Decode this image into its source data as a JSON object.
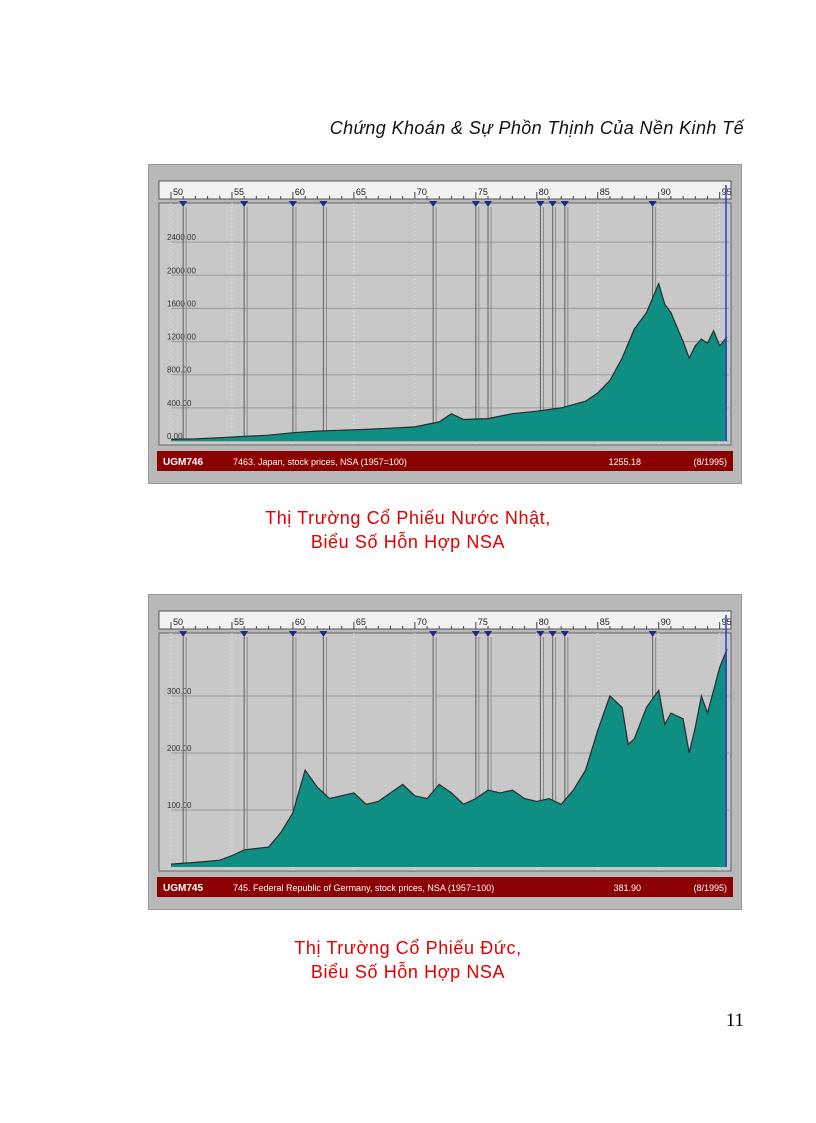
{
  "header": {
    "title": "Chứng Khoán & Sự Phồn Thịnh Của Nền Kinh Tế"
  },
  "page_number": "11",
  "captions": {
    "japan": [
      "Thị Trường Cổ Phiếu Nước Nhật,",
      "Biểu Số Hỗn Hợp NSA"
    ],
    "germany": [
      "Thị Trường Cổ Phiếu Đức,",
      "Biểu Số Hỗn Hợp NSA"
    ]
  },
  "colors": {
    "fill": "#0f8f84",
    "status_bar": "#8b0000",
    "plot_bg": "#c8c8c8",
    "line": "#2a2a2a"
  },
  "chart_data": [
    {
      "type": "area",
      "title": "",
      "x_tick_labels": [
        "50",
        "55",
        "60",
        "65",
        "70",
        "75",
        "80",
        "85",
        "90",
        "95"
      ],
      "x_range": [
        1950,
        1995.6
      ],
      "y_tick_labels": [
        "0.00",
        "400.00",
        "800.00",
        "1200.00",
        "1600.00",
        "2000.00",
        "2400.00"
      ],
      "ylim": [
        0,
        2800
      ],
      "status_bar": {
        "code": "UGM746",
        "description": "7463. Japan, stock prices, NSA (1957=100)",
        "value": "1255.18",
        "date": "(8/1995)"
      },
      "signal_markers_x": [
        1951,
        1956,
        1960,
        1962.5,
        1971.5,
        1975,
        1976,
        1980.3,
        1981.3,
        1982.3,
        1989.5
      ],
      "x": [
        1950,
        1952,
        1954,
        1956,
        1958,
        1960,
        1962,
        1964,
        1966,
        1968,
        1970,
        1972,
        1973,
        1974,
        1976,
        1978,
        1980,
        1982,
        1984,
        1985,
        1986,
        1987,
        1988,
        1989,
        1990,
        1990.5,
        1991,
        1992,
        1992.5,
        1993,
        1993.5,
        1994,
        1994.5,
        1995,
        1995.6
      ],
      "values": [
        20,
        25,
        40,
        55,
        70,
        100,
        120,
        130,
        140,
        155,
        170,
        230,
        330,
        260,
        270,
        330,
        360,
        400,
        480,
        580,
        730,
        1000,
        1350,
        1550,
        1900,
        1650,
        1550,
        1200,
        1000,
        1150,
        1230,
        1180,
        1330,
        1150,
        1255
      ]
    },
    {
      "type": "area",
      "title": "",
      "x_tick_labels": [
        "50",
        "55",
        "60",
        "65",
        "70",
        "75",
        "80",
        "85",
        "90",
        "95"
      ],
      "x_range": [
        1950,
        1995.6
      ],
      "y_tick_labels": [
        "100.00",
        "200.00",
        "300.00"
      ],
      "ylim": [
        0,
        400
      ],
      "status_bar": {
        "code": "UGM745",
        "description": "745. Federal Republic of Germany, stock prices, NSA (1957=100)",
        "value": "381.90",
        "date": "(8/1995)"
      },
      "signal_markers_x": [
        1951,
        1956,
        1960,
        1962.5,
        1971.5,
        1975,
        1976,
        1980.3,
        1981.3,
        1982.3,
        1989.5
      ],
      "x": [
        1950,
        1952,
        1954,
        1955,
        1956,
        1958,
        1959,
        1960,
        1961,
        1962,
        1963,
        1965,
        1966,
        1967,
        1968,
        1969,
        1970,
        1971,
        1972,
        1973,
        1974,
        1975,
        1976,
        1977,
        1978,
        1979,
        1980,
        1981,
        1982,
        1983,
        1984,
        1985,
        1986,
        1987,
        1987.5,
        1988,
        1989,
        1990,
        1990.5,
        1991,
        1992,
        1992.5,
        1993,
        1993.5,
        1994,
        1995,
        1995.6
      ],
      "values": [
        5,
        8,
        12,
        20,
        30,
        35,
        60,
        95,
        170,
        140,
        120,
        130,
        110,
        115,
        130,
        145,
        125,
        120,
        145,
        130,
        110,
        120,
        135,
        130,
        135,
        120,
        115,
        120,
        110,
        135,
        170,
        240,
        300,
        280,
        215,
        225,
        280,
        310,
        250,
        270,
        260,
        200,
        245,
        300,
        270,
        350,
        381.9
      ]
    }
  ]
}
